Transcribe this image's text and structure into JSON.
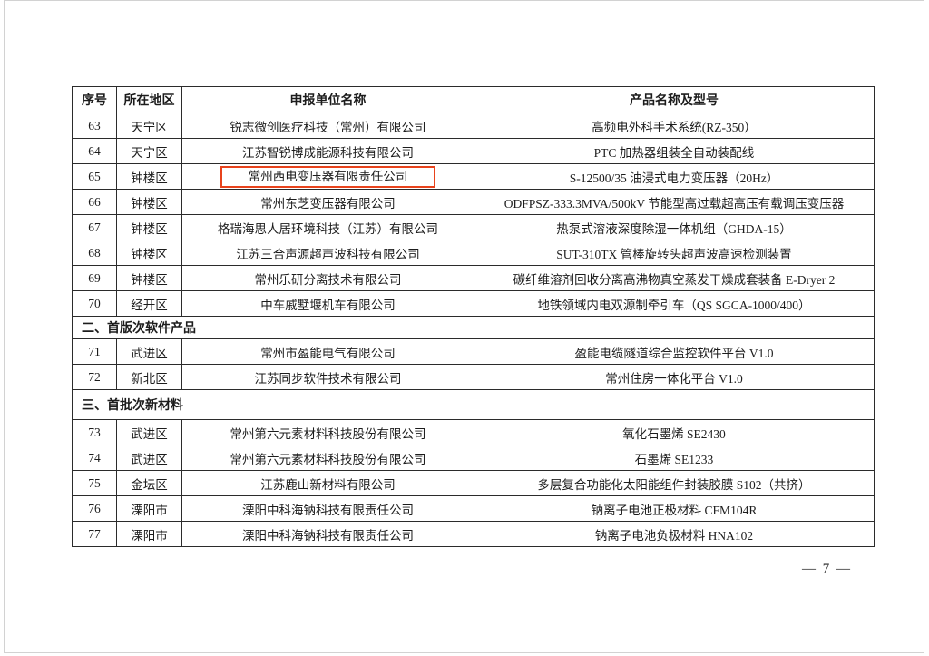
{
  "page": {
    "number_label": "— 7 —"
  },
  "highlight": {
    "color": "#e8431c",
    "target_row_seq": "65"
  },
  "table": {
    "headers": {
      "seq": "序号",
      "district": "所在地区",
      "company": "申报单位名称",
      "product": "产品名称及型号"
    },
    "sections": {
      "software": "二、首版次软件产品",
      "materials": "三、首批次新材料"
    },
    "rows": [
      {
        "seq": "63",
        "district": "天宁区",
        "company": "锐志微创医疗科技（常州）有限公司",
        "product": "高频电外科手术系统(RZ-350）"
      },
      {
        "seq": "64",
        "district": "天宁区",
        "company": "江苏智锐博成能源科技有限公司",
        "product": "PTC 加热器组装全自动装配线"
      },
      {
        "seq": "65",
        "district": "钟楼区",
        "company": "常州西电变压器有限责任公司",
        "product": "S-12500/35 油浸式电力变压器（20Hz）"
      },
      {
        "seq": "66",
        "district": "钟楼区",
        "company": "常州东芝变压器有限公司",
        "product": "ODFPSZ-333.3MVA/500kV 节能型高过载超高压有载调压变压器"
      },
      {
        "seq": "67",
        "district": "钟楼区",
        "company": "格瑞海思人居环境科技（江苏）有限公司",
        "product": "热泵式溶液深度除湿一体机组（GHDA-15）"
      },
      {
        "seq": "68",
        "district": "钟楼区",
        "company": "江苏三合声源超声波科技有限公司",
        "product": "SUT-310TX 管棒旋转头超声波高速检测装置"
      },
      {
        "seq": "69",
        "district": "钟楼区",
        "company": "常州乐研分离技术有限公司",
        "product": "碳纤维溶剂回收分离高沸物真空蒸发干燥成套装备 E-Dryer 2"
      },
      {
        "seq": "70",
        "district": "经开区",
        "company": "中车戚墅堰机车有限公司",
        "product": "地铁领域内电双源制牵引车（QS SGCA-1000/400）"
      },
      {
        "seq": "71",
        "district": "武进区",
        "company": "常州市盈能电气有限公司",
        "product": "盈能电缆隧道综合监控软件平台 V1.0"
      },
      {
        "seq": "72",
        "district": "新北区",
        "company": "江苏同步软件技术有限公司",
        "product": "常州住房一体化平台 V1.0"
      },
      {
        "seq": "73",
        "district": "武进区",
        "company": "常州第六元素材料科技股份有限公司",
        "product": "氧化石墨烯 SE2430"
      },
      {
        "seq": "74",
        "district": "武进区",
        "company": "常州第六元素材料科技股份有限公司",
        "product": "石墨烯 SE1233"
      },
      {
        "seq": "75",
        "district": "金坛区",
        "company": "江苏鹿山新材料有限公司",
        "product": "多层复合功能化太阳能组件封装胶膜 S102（共挤）"
      },
      {
        "seq": "76",
        "district": "溧阳市",
        "company": "溧阳中科海钠科技有限责任公司",
        "product": "钠离子电池正极材料 CFM104R"
      },
      {
        "seq": "77",
        "district": "溧阳市",
        "company": "溧阳中科海钠科技有限责任公司",
        "product": "钠离子电池负极材料 HNA102"
      }
    ]
  }
}
